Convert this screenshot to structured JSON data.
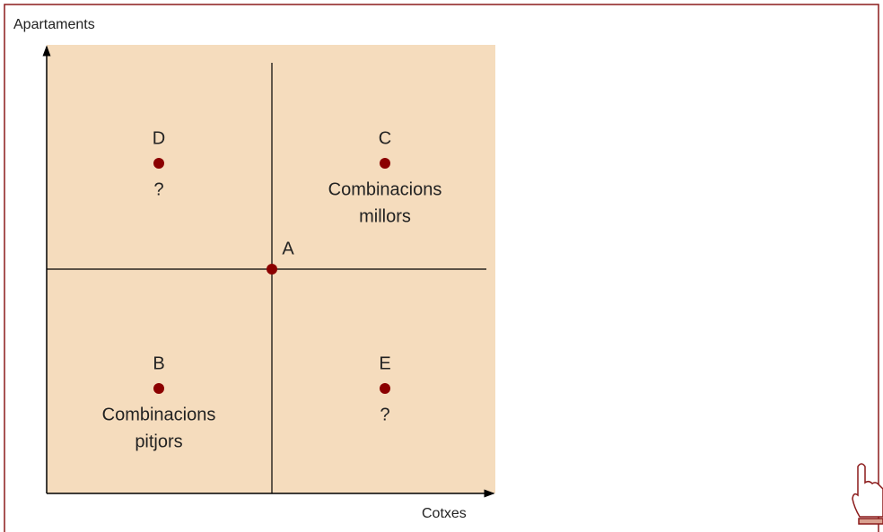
{
  "y_axis_label": "Apartaments",
  "x_axis_label": "Cotxes",
  "points": [
    {
      "label": "A"
    },
    {
      "label": "D",
      "note": [
        "?"
      ]
    },
    {
      "label": "C",
      "note": [
        "Combinacions",
        "millors"
      ]
    },
    {
      "label": "B",
      "note": [
        "Combinacions",
        "pitjors"
      ]
    },
    {
      "label": "E",
      "note": [
        "?"
      ]
    }
  ]
}
